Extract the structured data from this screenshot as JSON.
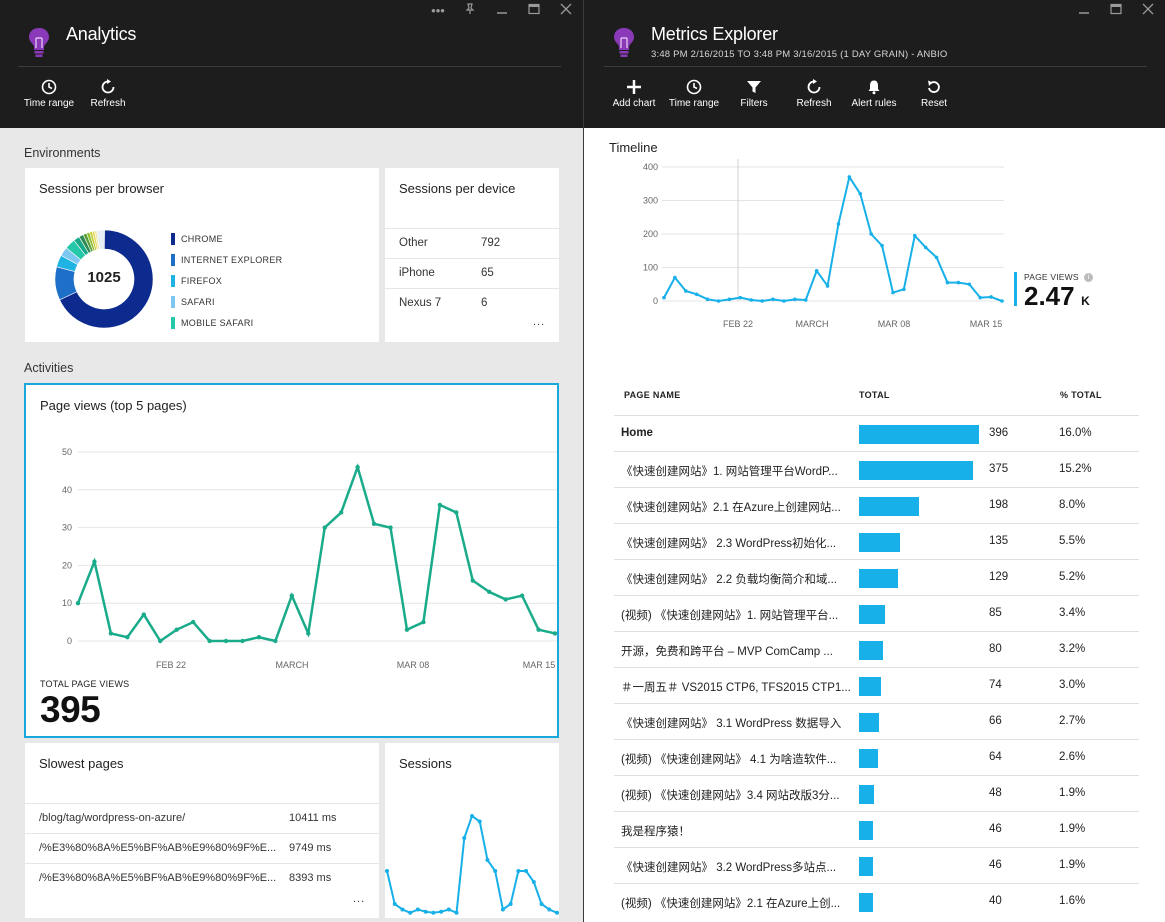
{
  "analytics": {
    "title": "Analytics",
    "commands": [
      {
        "label": "Time range",
        "icon": "clock-icon"
      },
      {
        "label": "Refresh",
        "icon": "refresh-icon"
      }
    ],
    "environments_label": "Environments",
    "activities_label": "Activities",
    "sessions_per_browser": {
      "title": "Sessions per browser",
      "total": "1025",
      "legend": [
        {
          "label": "CHROME",
          "color": "#0d2b8f"
        },
        {
          "label": "INTERNET EXPLORER",
          "color": "#1e6fc8"
        },
        {
          "label": "FIREFOX",
          "color": "#1fb3e4"
        },
        {
          "label": "SAFARI",
          "color": "#7ec7f0"
        },
        {
          "label": "MOBILE SAFARI",
          "color": "#25c8a8"
        }
      ]
    },
    "sessions_per_device": {
      "title": "Sessions per device",
      "rows": [
        {
          "name": "Other",
          "value": "792"
        },
        {
          "name": "iPhone",
          "value": "65"
        },
        {
          "name": "Nexus 7",
          "value": "6"
        }
      ],
      "more": "..."
    },
    "page_views": {
      "title": "Page views (top 5 pages)",
      "total_label": "TOTAL PAGE VIEWS",
      "total": "395",
      "color": "#1aab8a",
      "chart_data": {
        "type": "line",
        "x_tick_labels": [
          "FEB 22",
          "MARCH",
          "MAR 08",
          "MAR 15"
        ],
        "y_ticks": [
          0,
          10,
          20,
          30,
          40,
          50
        ],
        "ylim": [
          0,
          50
        ],
        "values": [
          10,
          21,
          2,
          1,
          7,
          0,
          3,
          5,
          0,
          0,
          0,
          1,
          0,
          12,
          2,
          30,
          34,
          46,
          31,
          30,
          3,
          5,
          36,
          34,
          16,
          13,
          11,
          12,
          3,
          2
        ],
        "grid": true
      }
    },
    "slowest_pages": {
      "title": "Slowest pages",
      "rows": [
        {
          "name": "/blog/tag/wordpress-on-azure/",
          "value": "10411 ms"
        },
        {
          "name": "/%E3%80%8A%E5%BF%AB%E9%80%9F%E...",
          "value": "9749 ms"
        },
        {
          "name": "/%E3%80%8A%E5%BF%AB%E9%80%9F%E...",
          "value": "8393 ms"
        }
      ],
      "more": "..."
    },
    "sessions": {
      "title": "Sessions",
      "color": "#17b0e8",
      "chart_data": {
        "type": "line",
        "values": [
          4,
          1,
          0.5,
          0.2,
          0.5,
          0.3,
          0.2,
          0.3,
          0.5,
          0.2,
          7,
          9,
          8.5,
          5,
          4,
          0.5,
          1,
          4,
          4,
          3,
          1,
          0.5,
          0.2
        ]
      }
    }
  },
  "metrics": {
    "title": "Metrics Explorer",
    "subtitle": "3:48 PM 2/16/2015 TO 3:48 PM 3/16/2015 (1 DAY GRAIN) - ANBIO",
    "commands": [
      {
        "label": "Add chart",
        "icon": "plus-icon"
      },
      {
        "label": "Time range",
        "icon": "clock-icon"
      },
      {
        "label": "Filters",
        "icon": "filter-icon"
      },
      {
        "label": "Refresh",
        "icon": "refresh-icon"
      },
      {
        "label": "Alert rules",
        "icon": "bell-icon"
      },
      {
        "label": "Reset",
        "icon": "reset-icon"
      }
    ],
    "timeline": {
      "title": "Timeline",
      "metric_label": "PAGE VIEWS",
      "metric_value": "2.47",
      "metric_unit": "K",
      "color": "#17b0e8",
      "chart_data": {
        "type": "line",
        "x_tick_labels": [
          "FEB 22",
          "MARCH",
          "MAR 08",
          "MAR 15"
        ],
        "y_ticks": [
          0,
          100,
          200,
          300,
          400
        ],
        "ylim": [
          0,
          400
        ],
        "values": [
          10,
          70,
          30,
          20,
          5,
          0,
          5,
          10,
          3,
          0,
          5,
          0,
          5,
          3,
          90,
          45,
          230,
          370,
          320,
          200,
          165,
          25,
          35,
          195,
          160,
          130,
          55,
          55,
          50,
          10,
          12,
          0
        ],
        "grid": true
      }
    },
    "table": {
      "headers": {
        "name": "PAGE NAME",
        "total": "TOTAL",
        "pct": "% TOTAL"
      },
      "bar_color": "#17b0e8",
      "rows": [
        {
          "name": "Home",
          "total": 396,
          "pct": "16.0%"
        },
        {
          "name": "《快速创建网站》1. 网站管理平台WordP...",
          "total": 375,
          "pct": "15.2%"
        },
        {
          "name": "《快速创建网站》2.1 在Azure上创建网站...",
          "total": 198,
          "pct": "8.0%"
        },
        {
          "name": "《快速创建网站》 2.3 WordPress初始化...",
          "total": 135,
          "pct": "5.5%"
        },
        {
          "name": "《快速创建网站》 2.2 负载均衡简介和域...",
          "total": 129,
          "pct": "5.2%"
        },
        {
          "name": "(视频) 《快速创建网站》1. 网站管理平台...",
          "total": 85,
          "pct": "3.4%"
        },
        {
          "name": "开源，免费和跨平台 – MVP ComCamp ...",
          "total": 80,
          "pct": "3.2%"
        },
        {
          "name": "＃一周五＃ VS2015 CTP6, TFS2015 CTP1...",
          "total": 74,
          "pct": "3.0%"
        },
        {
          "name": "《快速创建网站》 3.1 WordPress 数据导入",
          "total": 66,
          "pct": "2.7%"
        },
        {
          "name": "(视频) 《快速创建网站》 4.1 为啥造软件...",
          "total": 64,
          "pct": "2.6%"
        },
        {
          "name": "(视频) 《快速创建网站》3.4 网站改版3分...",
          "total": 48,
          "pct": "1.9%"
        },
        {
          "name": "我是程序猿！",
          "total": 46,
          "pct": "1.9%"
        },
        {
          "name": "《快速创建网站》 3.2 WordPress多站点...",
          "total": 46,
          "pct": "1.9%"
        },
        {
          "name": "(视频) 《快速创建网站》2.1 在Azure上创...",
          "total": 40,
          "pct": "1.6%"
        }
      ]
    }
  }
}
